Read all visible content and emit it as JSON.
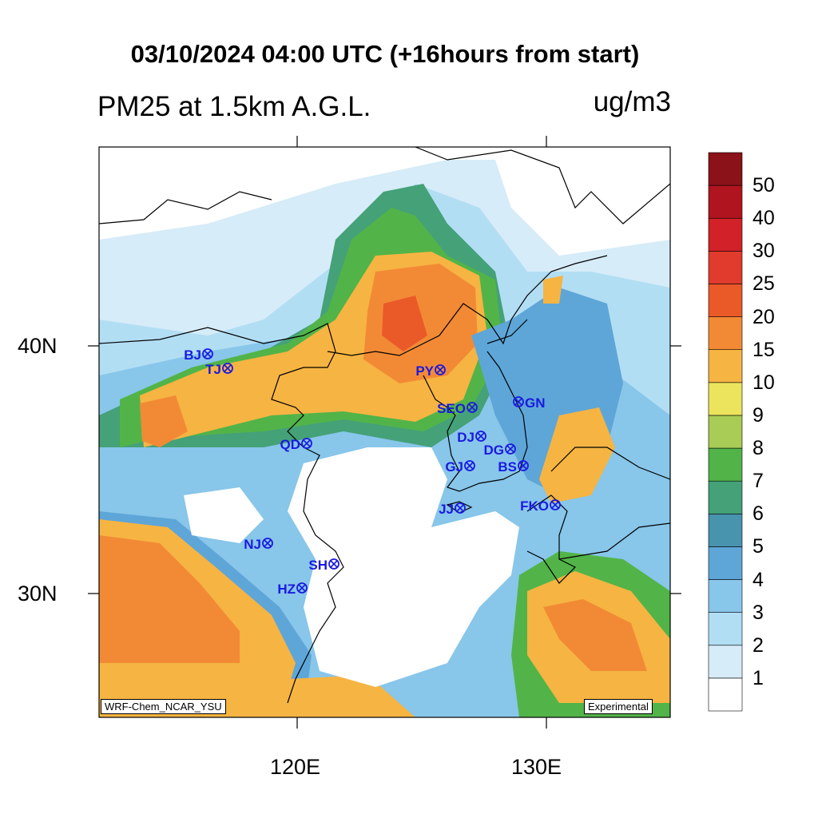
{
  "title": "03/10/2024 04:00 UTC (+16hours from start)",
  "subtitle": "PM25 at 1.5km A.G.L.",
  "units": "ug/m3",
  "x_ticks": [
    "120E",
    "130E"
  ],
  "y_ticks": [
    "40N",
    "30N"
  ],
  "model_label": "WRF-Chem_NCAR_YSU",
  "status_label": "Experimental",
  "legend": {
    "levels": [
      "1",
      "2",
      "3",
      "4",
      "5",
      "6",
      "7",
      "8",
      "9",
      "10",
      "15",
      "20",
      "25",
      "30",
      "40",
      "50"
    ],
    "colors": [
      "#ffffff",
      "#d6ecf8",
      "#b2def4",
      "#88c6ea",
      "#5ea6d8",
      "#4893ae",
      "#45a178",
      "#52b448",
      "#a8cc55",
      "#ece45c",
      "#f6b442",
      "#f28a35",
      "#ea5a28",
      "#e03b2c",
      "#d22128",
      "#b0141e",
      "#8a1218"
    ]
  },
  "stations": [
    {
      "code": "BJ"
    },
    {
      "code": "TJ"
    },
    {
      "code": "PY"
    },
    {
      "code": "SEO"
    },
    {
      "code": "GN"
    },
    {
      "code": "QD"
    },
    {
      "code": "DJ"
    },
    {
      "code": "DG"
    },
    {
      "code": "GJ"
    },
    {
      "code": "BS"
    },
    {
      "code": "JJ"
    },
    {
      "code": "FKO"
    },
    {
      "code": "NJ"
    },
    {
      "code": "SH"
    },
    {
      "code": "HZ"
    }
  ]
}
